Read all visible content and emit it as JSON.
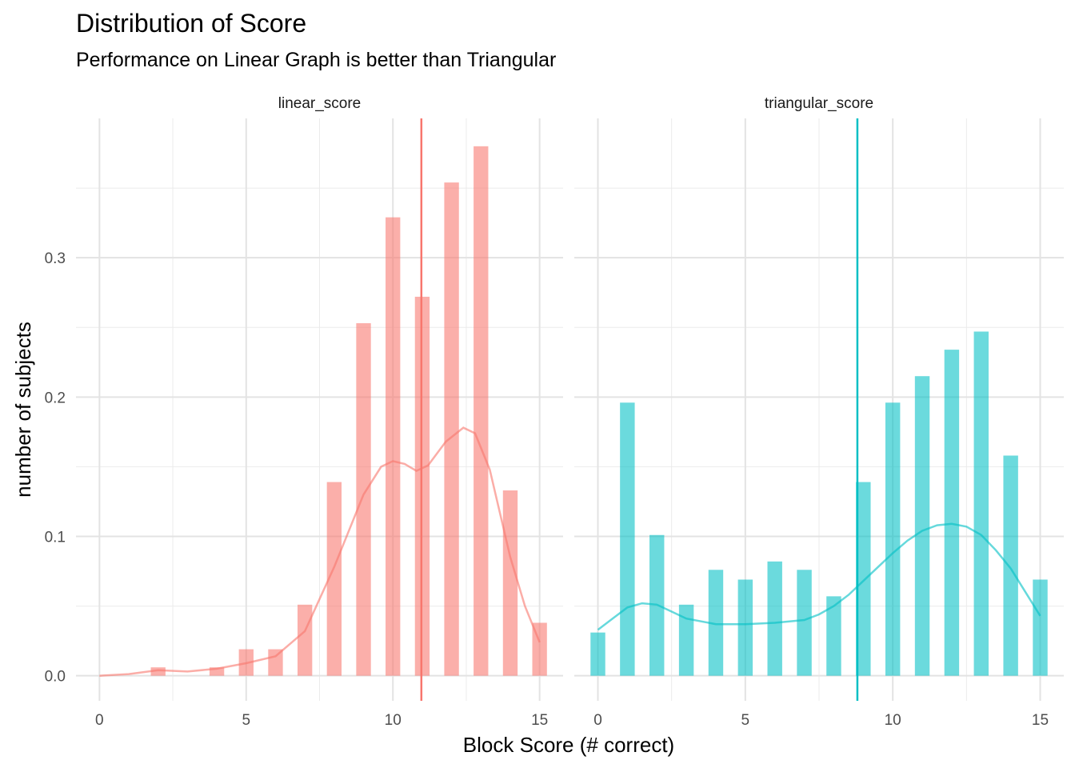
{
  "chart_data": {
    "type": "bar",
    "title": "Distribution of Score",
    "subtitle": "Performance on Linear Graph is better than Triangular",
    "xlabel": "Block Score (# correct)",
    "ylabel": "number of subjects",
    "xlim": [
      -0.8,
      15.8
    ],
    "ylim": [
      -0.018,
      0.4
    ],
    "x_ticks": [
      0,
      5,
      10,
      15
    ],
    "y_ticks": [
      0.0,
      0.1,
      0.2,
      0.3
    ],
    "x_tick_labels": [
      "0",
      "5",
      "10",
      "15"
    ],
    "y_tick_labels": [
      "0.0",
      "0.1",
      "0.2",
      "0.3"
    ],
    "grid": true,
    "legend": "none",
    "panels": [
      {
        "name": "linear_score",
        "color": "#F8766D",
        "x": [
          2,
          4,
          5,
          6,
          7,
          8,
          9,
          10,
          11,
          12,
          13,
          14,
          15
        ],
        "values": [
          0.006,
          0.006,
          0.019,
          0.019,
          0.051,
          0.139,
          0.253,
          0.329,
          0.272,
          0.354,
          0.38,
          0.133,
          0.038
        ],
        "mean_line": 10.97,
        "density": [
          [
            0,
            0
          ],
          [
            1,
            0.0012
          ],
          [
            2,
            0.004
          ],
          [
            3,
            0.003
          ],
          [
            4,
            0.005
          ],
          [
            5,
            0.009
          ],
          [
            6,
            0.014
          ],
          [
            7,
            0.032
          ],
          [
            8,
            0.078
          ],
          [
            9,
            0.13
          ],
          [
            9.6,
            0.15
          ],
          [
            10,
            0.154
          ],
          [
            10.4,
            0.152
          ],
          [
            10.8,
            0.147
          ],
          [
            11.2,
            0.151
          ],
          [
            11.8,
            0.168
          ],
          [
            12.4,
            0.178
          ],
          [
            12.8,
            0.174
          ],
          [
            13.3,
            0.148
          ],
          [
            14,
            0.085
          ],
          [
            14.5,
            0.05
          ],
          [
            15,
            0.024
          ]
        ]
      },
      {
        "name": "triangular_score",
        "color": "#00BFC4",
        "x": [
          0,
          1,
          2,
          3,
          4,
          5,
          6,
          7,
          8,
          9,
          10,
          11,
          12,
          13,
          14,
          15
        ],
        "values": [
          0.031,
          0.196,
          0.101,
          0.051,
          0.076,
          0.069,
          0.082,
          0.076,
          0.057,
          0.139,
          0.196,
          0.215,
          0.234,
          0.247,
          0.158,
          0.069
        ],
        "mean_line": 8.8,
        "density": [
          [
            0,
            0.033
          ],
          [
            0.5,
            0.041
          ],
          [
            1,
            0.049
          ],
          [
            1.5,
            0.052
          ],
          [
            2,
            0.051
          ],
          [
            2.5,
            0.046
          ],
          [
            3,
            0.041
          ],
          [
            4,
            0.037
          ],
          [
            5,
            0.037
          ],
          [
            6,
            0.038
          ],
          [
            7,
            0.04
          ],
          [
            7.5,
            0.044
          ],
          [
            8,
            0.05
          ],
          [
            8.5,
            0.058
          ],
          [
            9,
            0.068
          ],
          [
            9.5,
            0.078
          ],
          [
            10,
            0.088
          ],
          [
            10.5,
            0.097
          ],
          [
            11,
            0.104
          ],
          [
            11.5,
            0.108
          ],
          [
            12,
            0.109
          ],
          [
            12.5,
            0.107
          ],
          [
            13,
            0.101
          ],
          [
            13.5,
            0.09
          ],
          [
            14,
            0.077
          ],
          [
            14.5,
            0.06
          ],
          [
            15,
            0.043
          ]
        ]
      }
    ]
  }
}
